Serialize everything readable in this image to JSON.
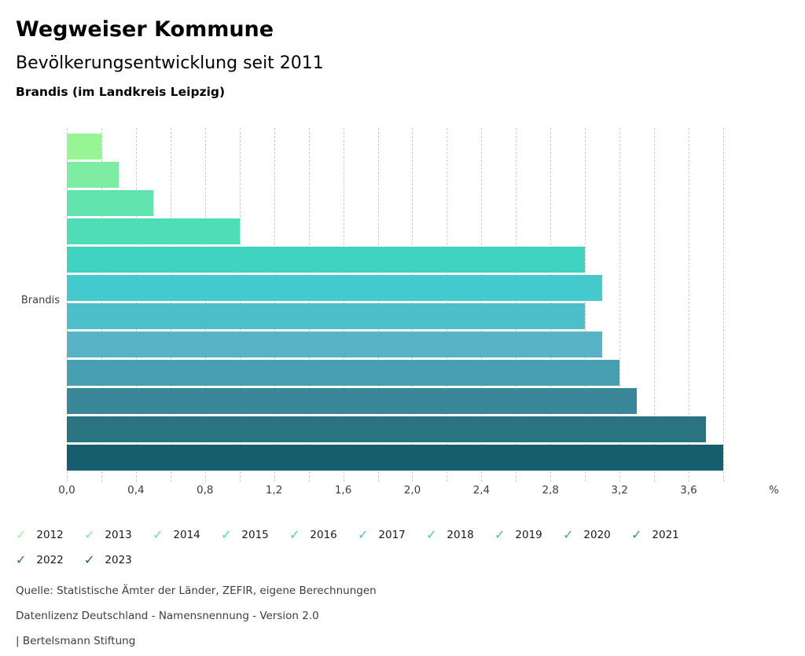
{
  "header": {
    "title": "Wegweiser Kommune",
    "subtitle": "Bevölkerungsentwicklung seit 2011",
    "location": "Brandis (im Landkreis Leipzig)"
  },
  "chart_data": {
    "type": "bar",
    "orientation": "horizontal",
    "category_label": "Brandis",
    "unit": "%",
    "xlim": [
      0,
      3.8
    ],
    "grid_interval": 0.2,
    "grid_style": "dashed",
    "x_ticks": [
      {
        "value": 0.0,
        "label": "0,0"
      },
      {
        "value": 0.4,
        "label": "0,4"
      },
      {
        "value": 0.8,
        "label": "0,8"
      },
      {
        "value": 1.2,
        "label": "1,2"
      },
      {
        "value": 1.6,
        "label": "1,6"
      },
      {
        "value": 2.0,
        "label": "2,0"
      },
      {
        "value": 2.4,
        "label": "2,4"
      },
      {
        "value": 2.8,
        "label": "2,8"
      },
      {
        "value": 3.2,
        "label": "3,2"
      },
      {
        "value": 3.6,
        "label": "3,6"
      }
    ],
    "series": [
      {
        "name": "2012",
        "value": 0.2,
        "color": "#98F593"
      },
      {
        "name": "2013",
        "value": 0.3,
        "color": "#7CEDA3"
      },
      {
        "name": "2014",
        "value": 0.5,
        "color": "#61E4AE"
      },
      {
        "name": "2015",
        "value": 1.0,
        "color": "#4FDDB7"
      },
      {
        "name": "2016",
        "value": 3.0,
        "color": "#3FD3C0"
      },
      {
        "name": "2017",
        "value": 3.1,
        "color": "#44CACD"
      },
      {
        "name": "2018",
        "value": 3.0,
        "color": "#4DBFCB"
      },
      {
        "name": "2019",
        "value": 3.1,
        "color": "#59B3C6"
      },
      {
        "name": "2020",
        "value": 3.2,
        "color": "#47A0B1"
      },
      {
        "name": "2021",
        "value": 3.3,
        "color": "#398799"
      },
      {
        "name": "2022",
        "value": 3.7,
        "color": "#2A7381"
      },
      {
        "name": "2023",
        "value": 3.8,
        "color": "#165E6E"
      }
    ]
  },
  "legend": {
    "check_glyph": "✓"
  },
  "footer": {
    "source": "Quelle: Statistische Ämter der Länder, ZEFIR, eigene Berechnungen",
    "license": "Datenlizenz Deutschland - Namensnennung - Version 2.0",
    "attribution": "| Bertelsmann Stiftung"
  }
}
